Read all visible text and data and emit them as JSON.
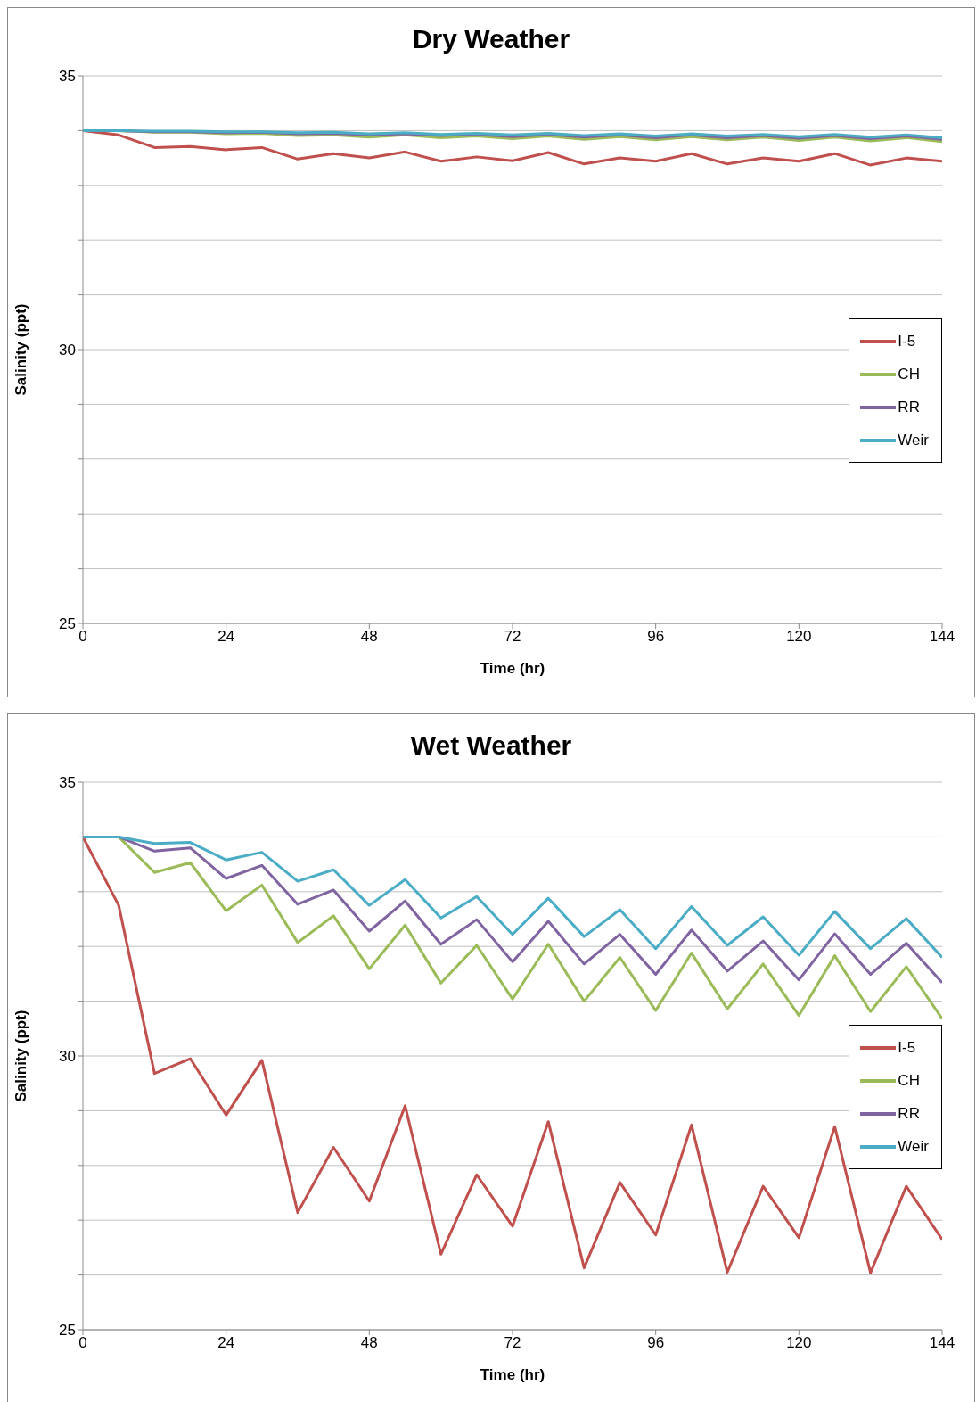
{
  "chart_data": [
    {
      "type": "line",
      "title": "Dry Weather",
      "xlabel": "Time (hr)",
      "ylabel": "Salinity (ppt)",
      "x": [
        0,
        6,
        12,
        18,
        24,
        30,
        36,
        42,
        48,
        54,
        60,
        66,
        72,
        78,
        84,
        90,
        96,
        102,
        108,
        114,
        120,
        126,
        132,
        138,
        144
      ],
      "xlim": [
        0,
        144
      ],
      "xticks": [
        0,
        24,
        48,
        72,
        96,
        120,
        144
      ],
      "ylim": [
        25,
        35
      ],
      "yticks": [
        25,
        {
          "value": 26,
          "label": null
        },
        {
          "value": 27,
          "label": null
        },
        {
          "value": 28,
          "label": null
        },
        {
          "value": 29,
          "label": null
        },
        30,
        {
          "value": 31,
          "label": null
        },
        {
          "value": 32,
          "label": null
        },
        {
          "value": 33,
          "label": null
        },
        {
          "value": 34,
          "label": null
        },
        35
      ],
      "grid": "y",
      "legend": "right",
      "marker": "none",
      "line_style": "solid",
      "series": [
        {
          "name": "I-5",
          "color": "#c0504d",
          "values": [
            34.0,
            33.92,
            33.69,
            33.71,
            33.65,
            33.69,
            33.48,
            33.58,
            33.5,
            33.61,
            33.44,
            33.52,
            33.45,
            33.6,
            33.39,
            33.5,
            33.44,
            33.58,
            33.39,
            33.5,
            33.44,
            33.58,
            33.37,
            33.5,
            33.44
          ]
        },
        {
          "name": "CH",
          "color": "#9bbb59",
          "values": [
            34,
            34,
            33.97,
            33.97,
            33.94,
            33.95,
            33.91,
            33.92,
            33.88,
            33.92,
            33.87,
            33.9,
            33.85,
            33.9,
            33.84,
            33.89,
            33.83,
            33.89,
            33.83,
            33.88,
            33.82,
            33.88,
            33.81,
            33.87,
            33.8
          ]
        },
        {
          "name": "RR",
          "color": "#8064a2",
          "values": [
            34,
            34,
            33.98,
            33.98,
            33.96,
            33.97,
            33.94,
            33.95,
            33.92,
            33.94,
            33.91,
            33.93,
            33.89,
            33.93,
            33.88,
            33.92,
            33.87,
            33.92,
            33.87,
            33.91,
            33.86,
            33.91,
            33.85,
            33.9,
            33.84
          ]
        },
        {
          "name": "Weir",
          "color": "#4bacc6",
          "values": [
            34,
            34,
            33.99,
            33.99,
            33.98,
            33.98,
            33.96,
            33.97,
            33.94,
            33.96,
            33.93,
            33.95,
            33.92,
            33.95,
            33.91,
            33.94,
            33.9,
            33.94,
            33.9,
            33.93,
            33.89,
            33.93,
            33.88,
            33.92,
            33.87
          ]
        }
      ]
    },
    {
      "type": "line",
      "title": "Wet Weather",
      "xlabel": "Time (hr)",
      "ylabel": "Salinity (ppt)",
      "x": [
        0,
        6,
        12,
        18,
        24,
        30,
        36,
        42,
        48,
        54,
        60,
        66,
        72,
        78,
        84,
        90,
        96,
        102,
        108,
        114,
        120,
        126,
        132,
        138,
        144
      ],
      "xlim": [
        0,
        144
      ],
      "xticks": [
        0,
        24,
        48,
        72,
        96,
        120,
        144
      ],
      "ylim": [
        25,
        35
      ],
      "yticks": [
        25,
        {
          "value": 26,
          "label": null
        },
        {
          "value": 27,
          "label": null
        },
        {
          "value": 28,
          "label": null
        },
        {
          "value": 29,
          "label": null
        },
        30,
        {
          "value": 31,
          "label": null
        },
        {
          "value": 32,
          "label": null
        },
        {
          "value": 33,
          "label": null
        },
        {
          "value": 34,
          "label": null
        },
        35
      ],
      "grid": "y",
      "legend": "right",
      "marker": "none",
      "line_style": "solid",
      "series": [
        {
          "name": "I-5",
          "color": "#c0504d",
          "values": [
            34.0,
            32.75,
            29.68,
            29.95,
            28.92,
            29.92,
            27.14,
            28.33,
            27.35,
            29.09,
            26.38,
            27.83,
            26.89,
            28.8,
            26.13,
            27.69,
            26.73,
            28.74,
            26.05,
            27.62,
            26.68,
            28.71,
            26.04,
            27.62,
            26.65
          ]
        },
        {
          "name": "CH",
          "color": "#9bbb59",
          "values": [
            34.0,
            34.0,
            33.35,
            33.53,
            32.65,
            33.12,
            32.07,
            32.56,
            31.59,
            32.39,
            31.33,
            32.02,
            31.04,
            32.04,
            31.0,
            31.8,
            30.83,
            31.88,
            30.86,
            31.68,
            30.74,
            31.83,
            30.81,
            31.63,
            30.68
          ]
        },
        {
          "name": "RR",
          "color": "#8064a2",
          "values": [
            34.0,
            34.0,
            33.74,
            33.8,
            33.24,
            33.48,
            32.77,
            33.03,
            32.28,
            32.83,
            32.04,
            32.49,
            31.72,
            32.46,
            31.68,
            32.22,
            31.49,
            32.3,
            31.55,
            32.1,
            31.39,
            32.23,
            31.49,
            32.06,
            31.34
          ]
        },
        {
          "name": "Weir",
          "color": "#4bacc6",
          "values": [
            34.0,
            34.0,
            33.88,
            33.9,
            33.58,
            33.72,
            33.19,
            33.4,
            32.75,
            33.22,
            32.52,
            32.91,
            32.22,
            32.88,
            32.18,
            32.67,
            31.96,
            32.73,
            32.02,
            32.54,
            31.84,
            32.64,
            31.96,
            32.51,
            31.8
          ]
        }
      ]
    }
  ]
}
